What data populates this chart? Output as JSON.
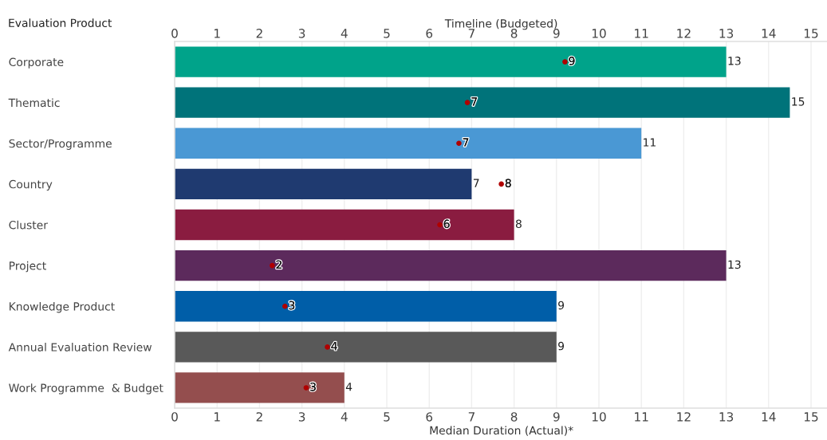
{
  "chart_data": {
    "type": "bar",
    "orientation": "horizontal",
    "ylabel": "Evaluation Product",
    "xlabel": "Median Duration (Actual)*",
    "x2label": "Timeline (Budgeted)",
    "categories": [
      "Corporate",
      "Thematic",
      "Sector/Programme",
      "Country",
      "Cluster",
      "Project",
      "Knowledge Product",
      "Annual Evaluation Review",
      "Work Programme  & Budget"
    ],
    "series": [
      {
        "colors": [
          "#00a38a",
          "#00737a",
          "#4a98d4",
          "#1f3a70",
          "#8a1c40",
          "#5c2a5c",
          "#005ea8",
          "#595959",
          "#944e4e"
        ],
        "values": [
          13,
          14.5,
          11,
          7,
          8,
          13,
          9,
          9,
          4
        ],
        "value_labels": [
          "13",
          "15",
          "11",
          "7",
          "8",
          "13",
          "9",
          "9",
          "4"
        ]
      },
      {
        "type": "scatter",
        "color": "#b00000",
        "marker": "circle",
        "values": [
          9.2,
          6.9,
          6.7,
          7.7,
          6.25,
          2.3,
          2.6,
          3.6,
          3.1
        ],
        "value_labels": [
          "9",
          "7",
          "7",
          "8",
          "6",
          "2",
          "3",
          "4",
          "3"
        ]
      }
    ],
    "xlim": [
      0,
      15.4
    ],
    "xticks": [
      0,
      1,
      2,
      3,
      4,
      5,
      6,
      7,
      8,
      9,
      10,
      11,
      12,
      13,
      14,
      15
    ],
    "x2lim": [
      0,
      15.4
    ],
    "x2ticks": [
      0,
      1,
      2,
      3,
      4,
      5,
      6,
      7,
      8,
      9,
      10,
      11,
      12,
      13,
      14,
      15
    ],
    "grid": "x",
    "legend": false
  }
}
